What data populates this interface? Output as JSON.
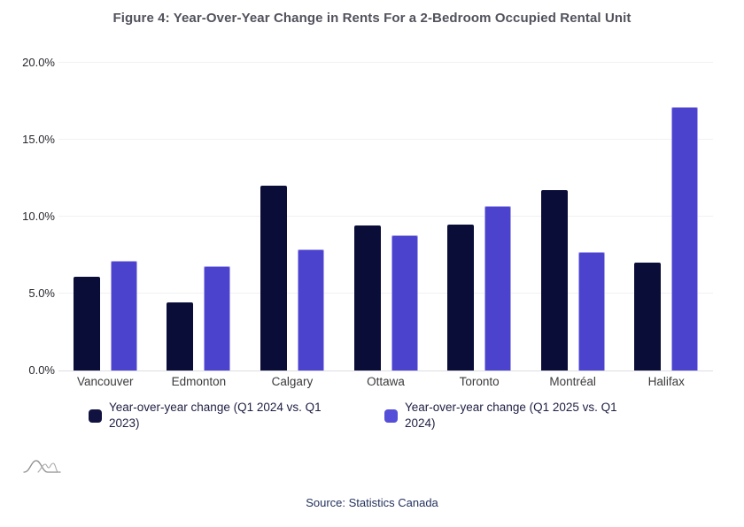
{
  "title": "Figure 4: Year-Over-Year Change in Rents For a 2-Bedroom Occupied Rental Unit",
  "source_caption": "Source: Statistics Canada",
  "colors": {
    "series_2024_bar": "#0a0d38",
    "series_2025_bar": "#4b42ce",
    "gridline": "#f1f1f5",
    "title_text": "#51525c",
    "axis_text": "#26262e",
    "legend_text": "#1e1f42",
    "source_text": "#23315c"
  },
  "chart_data": {
    "type": "bar",
    "title": "Figure 4: Year-Over-Year Change in Rents For a 2-Bedroom Occupied Rental Unit",
    "categories": [
      "Vancouver",
      "Edmonton",
      "Calgary",
      "Ottawa",
      "Toronto",
      "Montréal",
      "Halifax"
    ],
    "series": [
      {
        "name": "Year-over-year change (Q1 2024 vs. Q1 2023)",
        "color": "#0a0d38",
        "values": [
          6.1,
          4.4,
          12.0,
          9.4,
          9.5,
          11.7,
          7.0
        ]
      },
      {
        "name": "Year-over-year change (Q1 2025 vs. Q1 2024)",
        "color": "#4b42ce",
        "values": [
          7.1,
          6.8,
          7.9,
          8.8,
          10.7,
          7.7,
          17.1
        ]
      }
    ],
    "xlabel": "",
    "ylabel": "",
    "ylim": [
      0,
      20
    ],
    "yticks": [
      {
        "value": 0,
        "label": "0.0%"
      },
      {
        "value": 5,
        "label": "5.0%"
      },
      {
        "value": 10,
        "label": "10.0%"
      },
      {
        "value": 15,
        "label": "15.0%"
      },
      {
        "value": 20,
        "label": "20.0%"
      }
    ],
    "grid": "horizontal",
    "legend_position": "bottom"
  }
}
